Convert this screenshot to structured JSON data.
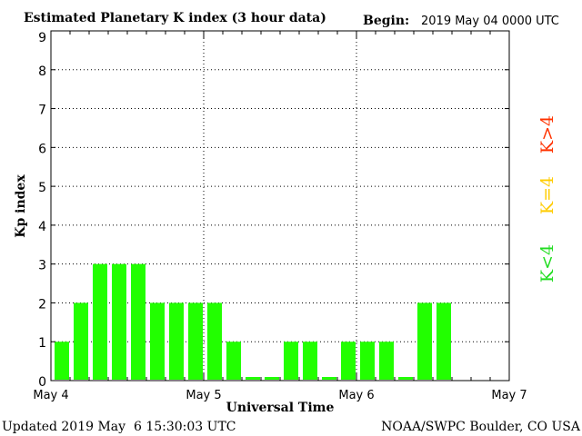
{
  "chart_data": {
    "type": "bar",
    "title": "Estimated Planetary K index (3 hour data)",
    "begin_label": "Begin:",
    "begin_value": "2019 May 04 0000 UTC",
    "xlabel": "Universal Time",
    "ylabel": "Kp index",
    "ylim": [
      0,
      9
    ],
    "y_ticks": [
      "0",
      "1",
      "2",
      "3",
      "4",
      "5",
      "6",
      "7",
      "8",
      "9"
    ],
    "x_tick_labels": [
      "May 4",
      "May 5",
      "May 6",
      "May 7"
    ],
    "bins_per_day": 8,
    "day_count": 3,
    "values": [
      1,
      2,
      3,
      3,
      3,
      2,
      2,
      2,
      2,
      1,
      0,
      0,
      1,
      1,
      0,
      1,
      1,
      1,
      0,
      2,
      2
    ],
    "grid": "dotted",
    "legend": [
      {
        "text": "K<4",
        "color": "#22dd22"
      },
      {
        "text": "K=4",
        "color": "#ffcc00"
      },
      {
        "text": "K>4",
        "color": "#ff3300"
      }
    ],
    "bar_color": "#22ff00"
  },
  "footer": {
    "updated": "Updated 2019 May  6 15:30:03 UTC",
    "source": "NOAA/SWPC Boulder, CO USA"
  }
}
